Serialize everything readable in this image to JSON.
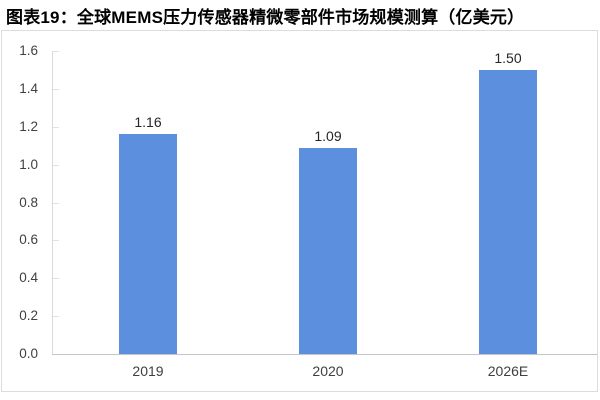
{
  "title": "图表19：全球MEMS压力传感器精微零部件市场规模测算（亿美元）",
  "colors": {
    "bar": "#5C90DF",
    "title_text": "#000000",
    "value_label_text": "#262626",
    "tick_label_text": "#404040",
    "axis_line": "#d9d9d9",
    "baseline": "#c4c4c4",
    "border": "#dcdcdc",
    "background": "#ffffff"
  },
  "chart_data": {
    "type": "bar",
    "title": "图表19：全球MEMS压力传感器精微零部件市场规模测算（亿美元）",
    "categories": [
      "2019",
      "2020",
      "2026E"
    ],
    "values": [
      1.16,
      1.09,
      1.5
    ],
    "data_labels": [
      "1.16",
      "1.09",
      "1.50"
    ],
    "xlabel": "",
    "ylabel": "",
    "ylim": [
      0,
      1.6
    ],
    "ytick_step": 0.2,
    "ytick_labels": [
      "0.0",
      "0.2",
      "0.4",
      "0.6",
      "0.8",
      "1.0",
      "1.2",
      "1.4",
      "1.6"
    ],
    "grid": false,
    "legend_position": "none",
    "unit": "亿美元"
  }
}
